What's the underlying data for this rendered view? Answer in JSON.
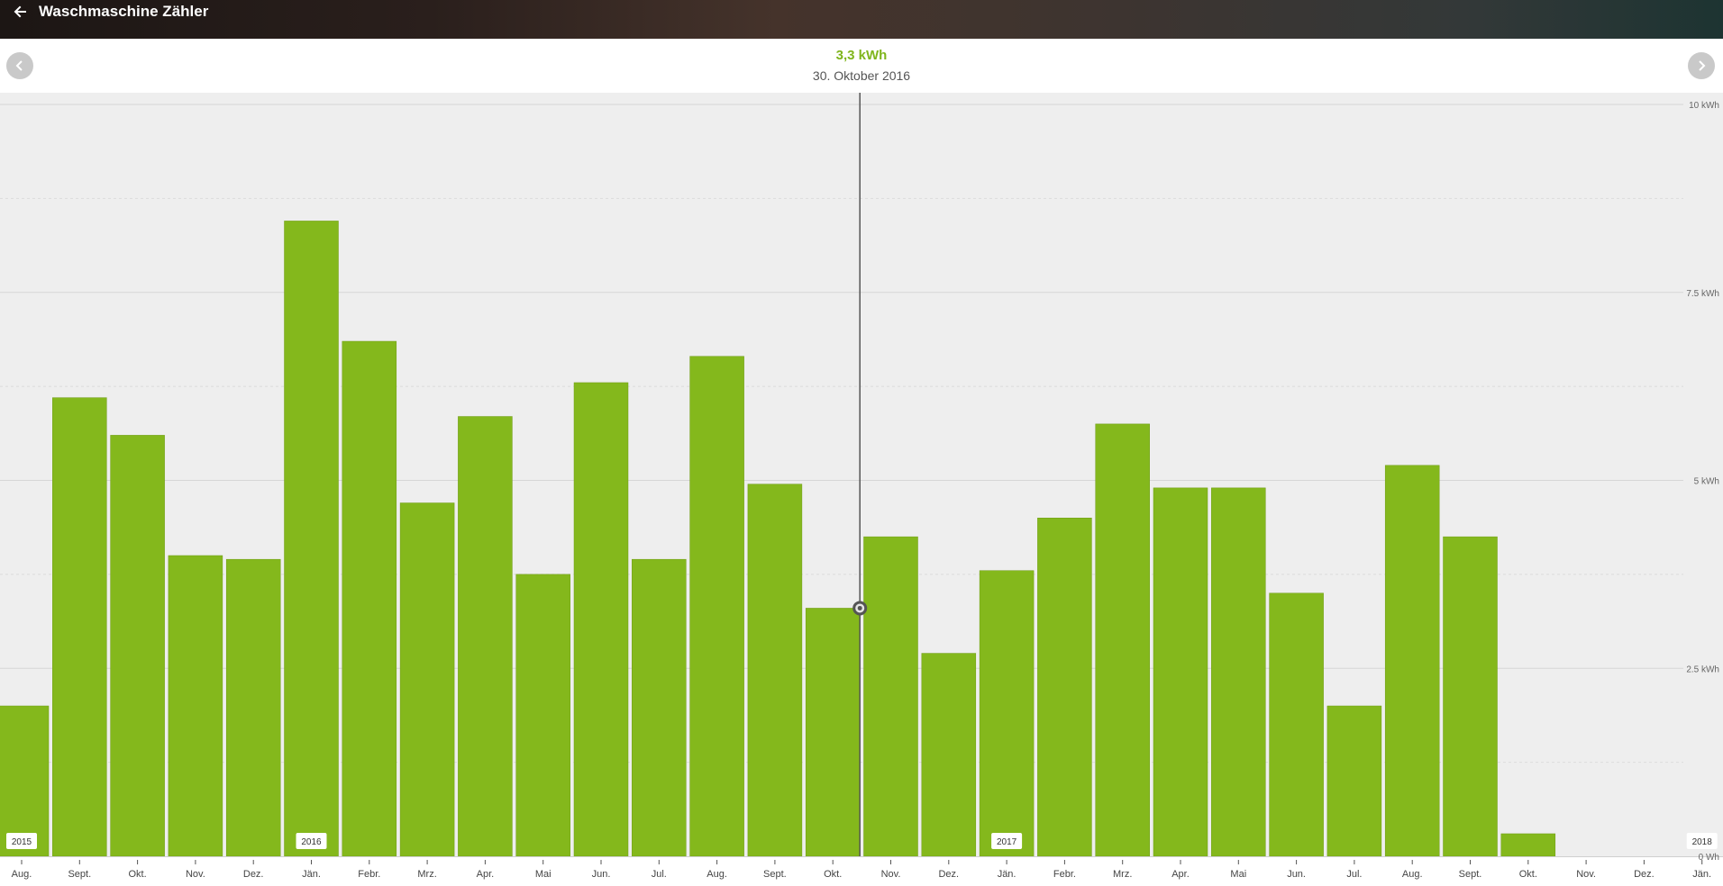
{
  "header": {
    "title": "Waschmaschine Zähler",
    "back_icon": "arrow-left-icon"
  },
  "summary": {
    "value": "3,3 kWh",
    "date": "30. Oktober 2016",
    "prev_icon": "chevron-left-icon",
    "next_icon": "chevron-right-icon"
  },
  "colors": {
    "bar": "#84b81c",
    "accent": "#7fb51c",
    "plot_bg": "#eeeeee"
  },
  "chart_data": {
    "type": "bar",
    "unit": "kWh",
    "ylim": [
      0,
      10
    ],
    "y_ticks": [
      {
        "value": 10,
        "label": "10 kWh"
      },
      {
        "value": 7.5,
        "label": "7.5 kWh"
      },
      {
        "value": 5,
        "label": "5 kWh"
      },
      {
        "value": 2.5,
        "label": "2.5 kWh"
      },
      {
        "value": 0,
        "label": "0 Wh"
      }
    ],
    "categories": [
      "Aug.",
      "Sept.",
      "Okt.",
      "Nov.",
      "Dez.",
      "Jän.",
      "Febr.",
      "Mrz.",
      "Apr.",
      "Mai",
      "Jun.",
      "Jul.",
      "Aug.",
      "Sept.",
      "Okt.",
      "Nov.",
      "Dez.",
      "Jän.",
      "Febr.",
      "Mrz.",
      "Apr.",
      "Mai",
      "Jun.",
      "Jul.",
      "Aug.",
      "Sept.",
      "Okt.",
      "Nov.",
      "Dez.",
      "Jän."
    ],
    "values": [
      2.0,
      6.1,
      5.6,
      4.0,
      3.95,
      8.45,
      6.85,
      4.7,
      5.85,
      3.75,
      6.3,
      3.95,
      6.65,
      4.95,
      3.3,
      4.25,
      2.7,
      3.8,
      4.5,
      5.75,
      4.9,
      4.9,
      3.5,
      2.0,
      5.2,
      4.25,
      0.3,
      0,
      0,
      0
    ],
    "year_labels": [
      {
        "index": 0,
        "label": "2015"
      },
      {
        "index": 5,
        "label": "2016"
      },
      {
        "index": 17,
        "label": "2017"
      },
      {
        "index": 29,
        "label": "2018"
      }
    ],
    "selected_index": 14,
    "grid": true,
    "legend": "none"
  }
}
